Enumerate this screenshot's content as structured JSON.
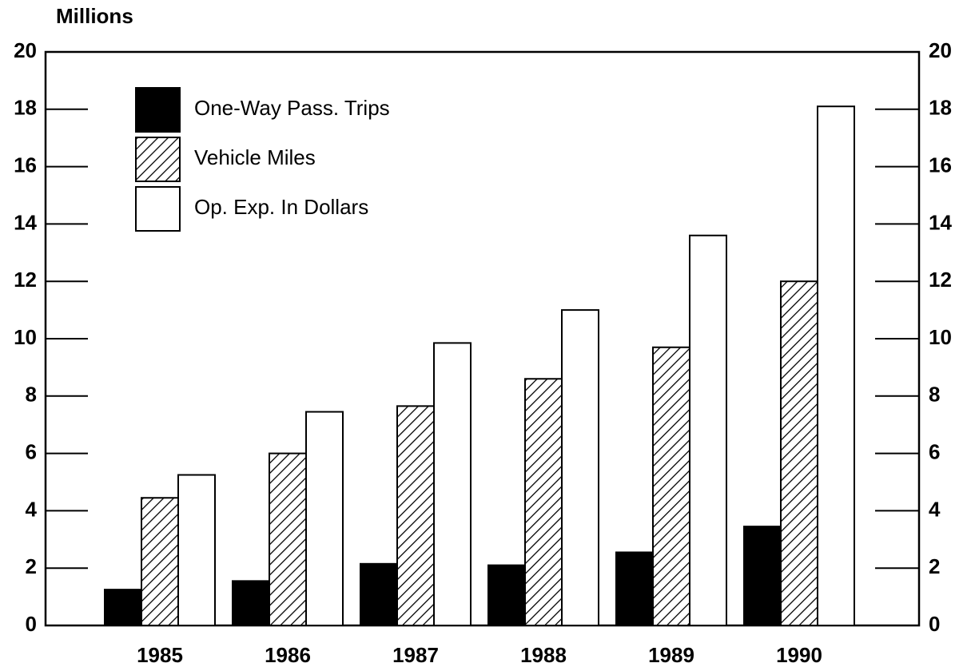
{
  "chart_data": {
    "type": "bar",
    "ylabel": "Millions",
    "categories": [
      "1985",
      "1986",
      "1987",
      "1988",
      "1989",
      "1990"
    ],
    "series": [
      {
        "name": "One-Way Pass. Trips",
        "color": "#000000",
        "values": [
          1.25,
          1.55,
          2.15,
          2.1,
          2.55,
          3.45
        ]
      },
      {
        "name": "Vehicle Miles",
        "color": "#000000",
        "hatch": true,
        "values": [
          4.45,
          6.0,
          7.65,
          8.6,
          9.7,
          12.0
        ]
      },
      {
        "name": "Op. Exp. In Dollars",
        "color": "#ffffff",
        "values": [
          5.25,
          7.45,
          9.85,
          11.0,
          13.6,
          18.1
        ]
      }
    ],
    "ylim": [
      0,
      20
    ],
    "yticks": [
      0,
      2,
      4,
      6,
      8,
      10,
      12,
      14,
      16,
      18,
      20
    ],
    "y2lim": [
      0,
      20
    ],
    "y2ticks": [
      0,
      2,
      4,
      6,
      8,
      10,
      12,
      14,
      16,
      18,
      20
    ],
    "grid": false,
    "legend": "upper left"
  }
}
